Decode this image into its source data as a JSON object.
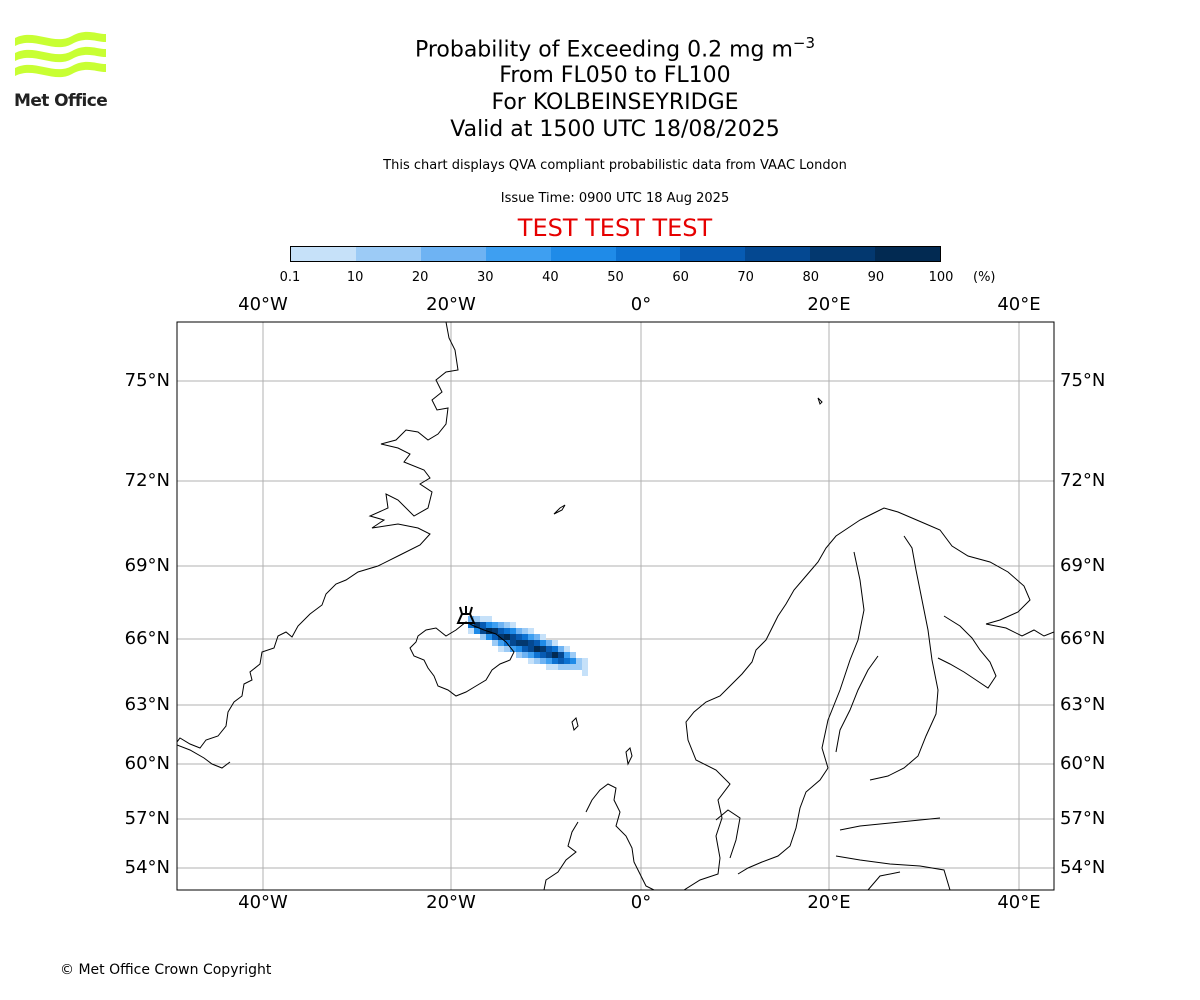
{
  "logo": {
    "text": "Met Office",
    "color": "#c8ff33"
  },
  "header": {
    "title_main": "Probability of Exceeding 0.2 mg m",
    "title_sup": "−3",
    "subtitle_levels": "From FL050 to FL100",
    "subtitle_location": "For KOLBEINSEYRIDGE",
    "subtitle_valid": "Valid at 1500 UTC 18/08/2025",
    "description": "This chart displays QVA compliant probabilistic data from VAAC London",
    "issue_time": "Issue Time: 0900 UTC 18 Aug 2025",
    "test_banner": "TEST TEST TEST"
  },
  "colorbar": {
    "tick_labels": [
      "0.1",
      "10",
      "20",
      "30",
      "40",
      "50",
      "60",
      "70",
      "80",
      "90",
      "100"
    ],
    "unit": "(%)",
    "colors": [
      "#e6f2fd",
      "#c6e1f9",
      "#9ccbf6",
      "#6eb3f3",
      "#3e9ff1",
      "#1f8be8",
      "#0d72d2",
      "#075bb3",
      "#044891",
      "#03386f",
      "#022a52"
    ]
  },
  "map": {
    "lon_labels": [
      "40°W",
      "20°W",
      "0°",
      "20°E",
      "40°E"
    ],
    "lat_labels": [
      "75°N",
      "72°N",
      "69°N",
      "66°N",
      "63°N",
      "60°N",
      "57°N",
      "54°N"
    ],
    "volcano_marker": "volcano-symbol"
  },
  "footer": {
    "copyright": "© Met Office Crown Copyright"
  }
}
